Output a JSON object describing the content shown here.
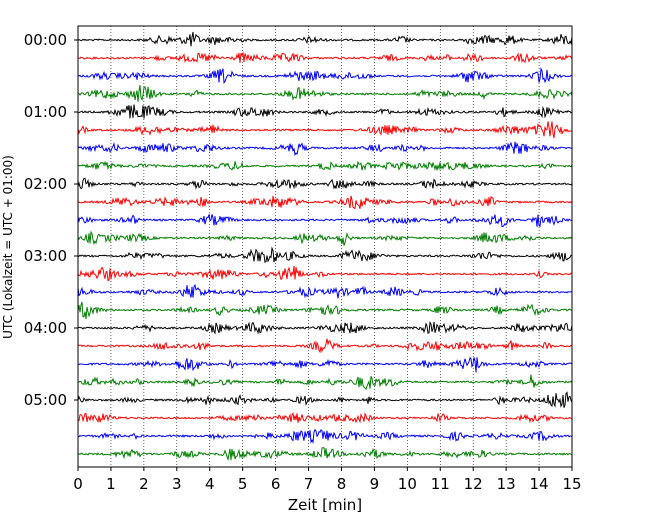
{
  "chart_data": {
    "type": "line",
    "title": "",
    "xlabel": "Zeit  [min]",
    "ylabel": "UTC (Lokalzeit = UTC + 01:00)",
    "xlim": [
      0,
      15
    ],
    "x_ticks": [
      0,
      1,
      2,
      3,
      4,
      5,
      6,
      7,
      8,
      9,
      10,
      11,
      12,
      13,
      14,
      15
    ],
    "x_tick_labels": [
      "0",
      "1",
      "2",
      "3",
      "4",
      "5",
      "6",
      "7",
      "8",
      "9",
      "10",
      "11",
      "12",
      "13",
      "14",
      "15"
    ],
    "y_tick_labels": [
      "00:00",
      "01:00",
      "02:00",
      "03:00",
      "04:00",
      "05:00"
    ],
    "y_tick_trace_index": [
      0,
      4,
      8,
      12,
      16,
      20
    ],
    "grid": "vertical dotted",
    "trace_count": 24,
    "trace_interval_minutes": 15,
    "trace_start_times": [
      "00:00",
      "00:15",
      "00:30",
      "00:45",
      "01:00",
      "01:15",
      "01:30",
      "01:45",
      "02:00",
      "02:15",
      "02:30",
      "02:45",
      "03:00",
      "03:15",
      "03:30",
      "03:45",
      "04:00",
      "04:15",
      "04:30",
      "04:45",
      "05:00",
      "05:15",
      "05:30",
      "05:45"
    ],
    "trace_color_cycle": [
      "#000000",
      "#ff0000",
      "#0000ff",
      "#008000"
    ]
  }
}
